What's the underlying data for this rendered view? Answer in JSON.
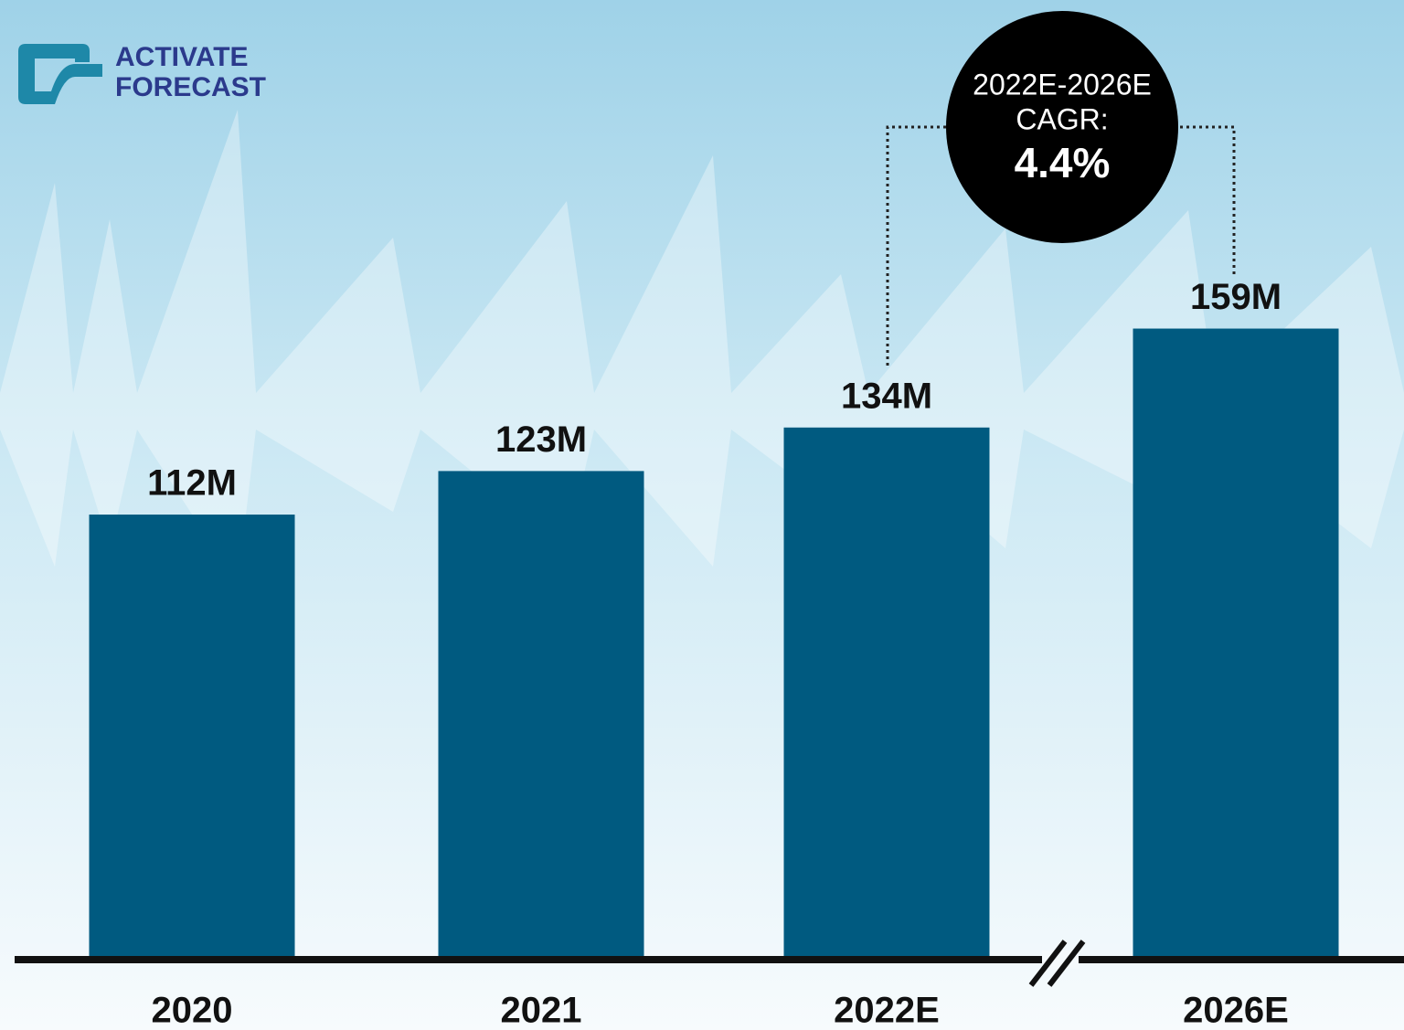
{
  "brand": [
    "ACTIVATE",
    "FORECAST"
  ],
  "chart_data": {
    "type": "bar",
    "categories": [
      "2020",
      "2021",
      "2022E",
      "2026E"
    ],
    "values": [
      112,
      123,
      134,
      159
    ],
    "value_labels": [
      "112M",
      "123M",
      "134M",
      "159M"
    ],
    "color": "#005a80",
    "annotation": [
      "2022E-2026E",
      "CAGR:",
      "4.4%"
    ]
  }
}
